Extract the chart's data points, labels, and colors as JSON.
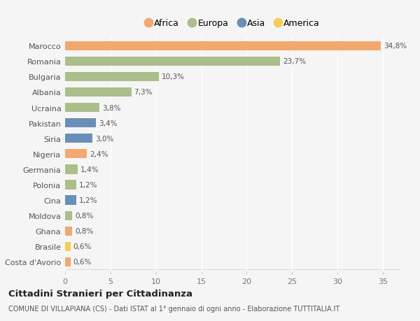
{
  "countries": [
    "Marocco",
    "Romania",
    "Bulgaria",
    "Albania",
    "Ucraina",
    "Pakistan",
    "Siria",
    "Nigeria",
    "Germania",
    "Polonia",
    "Cina",
    "Moldova",
    "Ghana",
    "Brasile",
    "Costa d'Avorio"
  ],
  "values": [
    34.8,
    23.7,
    10.3,
    7.3,
    3.8,
    3.4,
    3.0,
    2.4,
    1.4,
    1.2,
    1.2,
    0.8,
    0.8,
    0.6,
    0.6
  ],
  "labels": [
    "34,8%",
    "23,7%",
    "10,3%",
    "7,3%",
    "3,8%",
    "3,4%",
    "3,0%",
    "2,4%",
    "1,4%",
    "1,2%",
    "1,2%",
    "0,8%",
    "0,8%",
    "0,6%",
    "0,6%"
  ],
  "continents": [
    "Africa",
    "Europa",
    "Europa",
    "Europa",
    "Europa",
    "Asia",
    "Asia",
    "Africa",
    "Europa",
    "Europa",
    "Asia",
    "Europa",
    "Africa",
    "America",
    "Africa"
  ],
  "continent_colors": {
    "Africa": "#F2A86F",
    "Europa": "#ABBE8C",
    "Asia": "#6B8EB8",
    "America": "#F5CC5A"
  },
  "legend_order": [
    "Africa",
    "Europa",
    "Asia",
    "America"
  ],
  "background_color": "#f5f5f5",
  "xlim": [
    0,
    37
  ],
  "xticks": [
    0,
    5,
    10,
    15,
    20,
    25,
    30,
    35
  ],
  "title": "Cittadini Stranieri per Cittadinanza",
  "subtitle": "COMUNE DI VILLAPIANA (CS) - Dati ISTAT al 1° gennaio di ogni anno - Elaborazione TUTTITALIA.IT",
  "grid_color": "#ffffff",
  "bar_height": 0.6
}
